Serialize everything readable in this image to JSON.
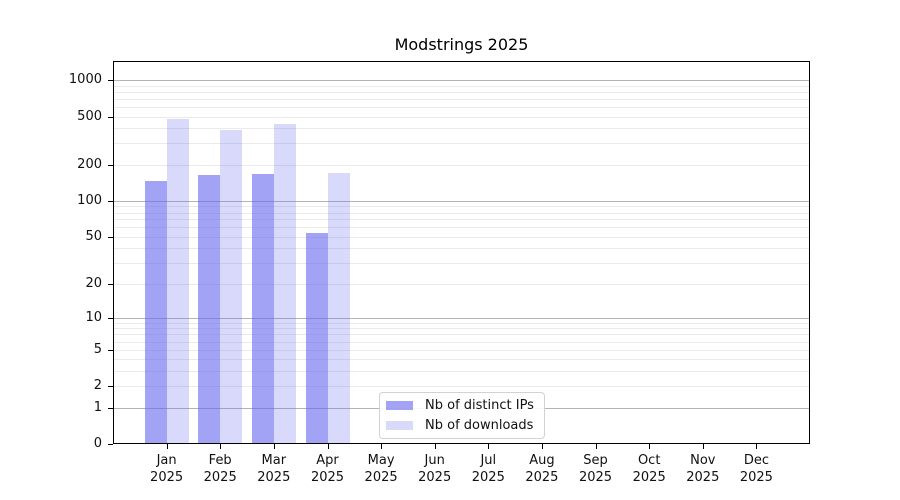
{
  "title": "Modstrings 2025",
  "chart_data": {
    "type": "bar",
    "title": "Modstrings 2025",
    "yscale": "log1p",
    "categories": [
      "Jan 2025",
      "Feb 2025",
      "Mar 2025",
      "Apr 2025",
      "May 2025",
      "Jun 2025",
      "Jul 2025",
      "Aug 2025",
      "Sep 2025",
      "Oct 2025",
      "Nov 2025",
      "Dec 2025"
    ],
    "series": [
      {
        "name": "Nb of distinct IPs",
        "alpha": 0.6,
        "values": [
          147,
          164,
          168,
          54,
          0,
          0,
          0,
          0,
          0,
          0,
          0,
          0
        ]
      },
      {
        "name": "Nb of downloads",
        "alpha": 0.25,
        "values": [
          480,
          390,
          434,
          170,
          0,
          0,
          0,
          0,
          0,
          0,
          0,
          0
        ]
      }
    ],
    "yticks": [
      0,
      1,
      2,
      5,
      10,
      20,
      50,
      100,
      200,
      500,
      1000
    ],
    "major_grid_values": [
      1,
      10,
      100,
      1000
    ],
    "minor_grid_values": [
      2,
      3,
      4,
      5,
      6,
      7,
      8,
      9,
      20,
      30,
      40,
      50,
      60,
      70,
      80,
      90,
      200,
      300,
      400,
      500,
      600,
      700,
      800,
      900
    ],
    "ylim": [
      0,
      1430
    ],
    "xlabel": "",
    "ylabel": "",
    "grid": "on",
    "legend_position": "lower center"
  },
  "colors": {
    "bar_base": "#6666ee",
    "major_grid": "#b4b4b4",
    "minor_grid": "#eaeaea",
    "axis": "#000000",
    "text": "#111111",
    "legend_border": "#d2d2d2"
  }
}
